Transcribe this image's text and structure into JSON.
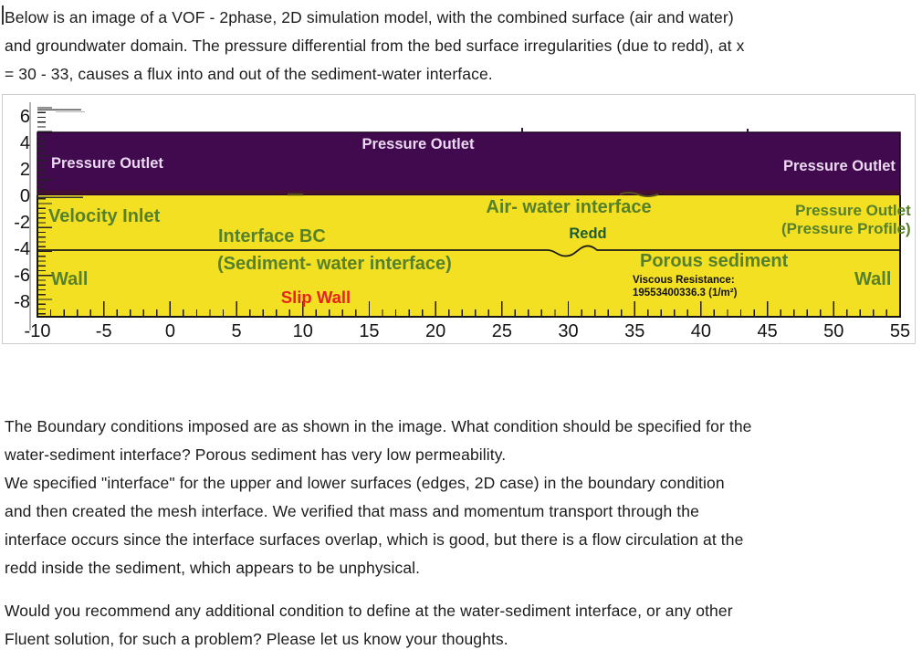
{
  "document": {
    "paragraph1": {
      "lines": [
        "Below is an image of a VOF - 2phase, 2D simulation model, with the combined surface (air and water)",
        "and groundwater domain. The pressure differential from the bed surface irregularities (due to redd), at x",
        "= 30 - 33, causes a flux into and out of the sediment-water interface."
      ]
    },
    "paragraph2": {
      "lines": [
        "The Boundary conditions imposed are as shown in the image. What condition should be specified for the",
        "water-sediment interface? Porous sediment has very low permeability.",
        "We specified \"interface\" for the upper and lower surfaces (edges, 2D case) in the boundary condition",
        "and then created the mesh interface. We verified that mass and momentum transport through the",
        "interface occurs since the interface surfaces overlap, which is good, but there is a flow circulation at the",
        "redd inside the sediment, which appears to be unphysical."
      ]
    },
    "paragraph3": {
      "lines": [
        "Would you recommend any additional condition to define at the water-sediment interface, or any other",
        "Fluent solution, for such a problem? Please let us know your thoughts."
      ]
    }
  },
  "figure": {
    "type": "simulation-domain-diagram",
    "x_axis": {
      "ticks": [
        -10,
        -5,
        0,
        5,
        10,
        15,
        20,
        25,
        30,
        35,
        40,
        45,
        50,
        55
      ],
      "range": [
        -10,
        55
      ],
      "minor_step": 1
    },
    "y_axis": {
      "ticks": [
        6,
        4,
        2,
        0,
        -2,
        -4,
        -6,
        -8
      ],
      "range": [
        -9,
        6
      ]
    },
    "colors": {
      "air_region": "#420a4e",
      "water_sediment_region": "#f4e022",
      "green_label": "#56802a",
      "redd_label": "#1d5c33",
      "slip_wall_red": "#e8231d",
      "outlet_text_white": "#ead9f0"
    },
    "labels": {
      "pressure_outlet_left": "Pressure Outlet",
      "pressure_outlet_top": "Pressure Outlet",
      "pressure_outlet_right": "Pressure Outlet",
      "velocity_inlet": "Velocity Inlet",
      "air_water_interface": "Air- water interface",
      "pressure_outlet_profile_line1": "Pressure Outlet",
      "pressure_outlet_profile_line2": "(Pressure Profile)",
      "interface_bc": "Interface BC",
      "sediment_water_interface": "(Sediment- water interface)",
      "redd": "Redd",
      "porous_sediment": "Porous sediment",
      "wall_left": "Wall",
      "wall_right": "Wall",
      "slip_wall": "Slip Wall",
      "viscous_resistance_label": "Viscous Resistance:",
      "viscous_resistance_value": "19553400336.3 (1/m²)"
    }
  }
}
